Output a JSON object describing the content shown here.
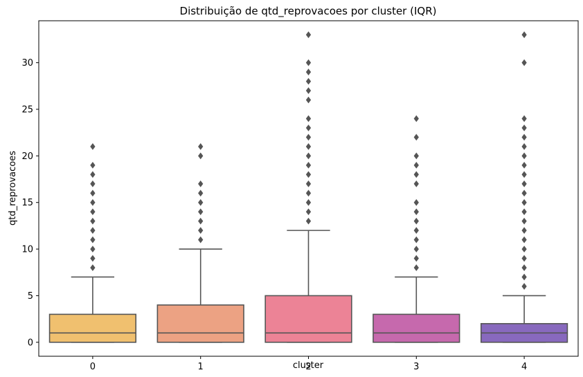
{
  "chart_data": {
    "type": "box",
    "title": "Distribuição de qtd_reprovacoes por cluster (IQR)",
    "xlabel": "cluster",
    "ylabel": "qtd_reprovacoes",
    "categories": [
      "0",
      "1",
      "2",
      "3",
      "4"
    ],
    "ylim": [
      -1.5,
      34.5
    ],
    "yticks": [
      0,
      5,
      10,
      15,
      20,
      25,
      30
    ],
    "grid": false,
    "boxes": [
      {
        "category": "0",
        "color": "#f0c06f",
        "min": 0,
        "q1": 0,
        "median": 1,
        "q3": 3,
        "whisker_high": 7,
        "outliers": [
          8,
          9,
          10,
          11,
          12,
          13,
          14,
          15,
          16,
          17,
          18,
          19,
          21
        ]
      },
      {
        "category": "1",
        "color": "#eca283",
        "min": 0,
        "q1": 0,
        "median": 1,
        "q3": 4,
        "whisker_high": 10,
        "outliers": [
          11,
          12,
          13,
          14,
          15,
          16,
          17,
          20,
          21
        ]
      },
      {
        "category": "2",
        "color": "#ec8396",
        "min": 0,
        "q1": 0,
        "median": 1,
        "q3": 5,
        "whisker_high": 12,
        "outliers": [
          13,
          14,
          15,
          16,
          17,
          18,
          19,
          20,
          21,
          22,
          23,
          24,
          26,
          27,
          28,
          29,
          30,
          33
        ]
      },
      {
        "category": "3",
        "color": "#c669ad",
        "min": 0,
        "q1": 0,
        "median": 1,
        "q3": 3,
        "whisker_high": 7,
        "outliers": [
          8,
          9,
          10,
          11,
          12,
          13,
          14,
          15,
          17,
          18,
          19,
          20,
          22,
          24
        ]
      },
      {
        "category": "4",
        "color": "#8869be",
        "min": 0,
        "q1": 0,
        "median": 1,
        "q3": 2,
        "whisker_high": 5,
        "outliers": [
          6,
          7,
          8,
          9,
          10,
          11,
          12,
          13,
          14,
          15,
          16,
          17,
          18,
          19,
          20,
          21,
          22,
          23,
          24,
          30,
          33
        ]
      }
    ],
    "line_color": "#555555"
  }
}
